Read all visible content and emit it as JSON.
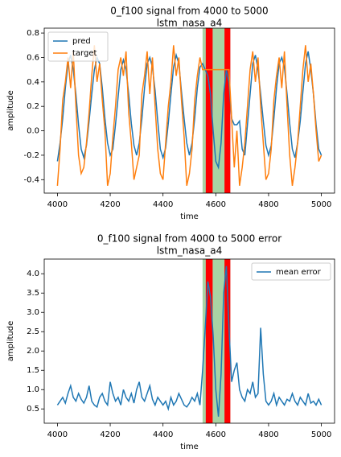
{
  "chart_data": [
    {
      "type": "line",
      "title": "0_f100 signal from 4000 to 5000",
      "subtitle": "lstm_nasa_a4",
      "xlabel": "time",
      "ylabel": "amplitude",
      "xlim": [
        3950,
        5050
      ],
      "xticks": [
        4000,
        4200,
        4400,
        4600,
        4800,
        5000
      ],
      "ylim": [
        -0.51,
        0.84
      ],
      "yticks": [
        -0.4,
        -0.2,
        {
          "value": 0,
          "label": "0.0"
        },
        0.2,
        0.4,
        0.6,
        0.8
      ],
      "grid": false,
      "legend": "upper left",
      "spans": [
        {
          "start": 4550,
          "end": 4655,
          "color": "#a9d3a4"
        },
        {
          "start": 4562,
          "end": 4588,
          "color": "#ff0000"
        },
        {
          "start": 4633,
          "end": 4655,
          "color": "#ff0000"
        }
      ],
      "x": [
        4000,
        4010,
        4020,
        4030,
        4040,
        4050,
        4060,
        4070,
        4080,
        4090,
        4100,
        4110,
        4120,
        4130,
        4140,
        4150,
        4160,
        4170,
        4180,
        4190,
        4200,
        4210,
        4220,
        4230,
        4240,
        4250,
        4260,
        4270,
        4280,
        4290,
        4300,
        4310,
        4320,
        4330,
        4340,
        4350,
        4360,
        4370,
        4380,
        4390,
        4400,
        4410,
        4420,
        4430,
        4440,
        4450,
        4460,
        4470,
        4480,
        4490,
        4500,
        4510,
        4520,
        4530,
        4540,
        4550,
        4560,
        4570,
        4580,
        4590,
        4600,
        4610,
        4620,
        4630,
        4640,
        4650,
        4660,
        4670,
        4680,
        4690,
        4700,
        4710,
        4720,
        4730,
        4740,
        4750,
        4760,
        4770,
        4780,
        4790,
        4800,
        4810,
        4820,
        4830,
        4840,
        4850,
        4860,
        4870,
        4880,
        4890,
        4900,
        4910,
        4920,
        4930,
        4940,
        4950,
        4960,
        4970,
        4980,
        4990,
        5000
      ],
      "series": [
        {
          "name": "pred",
          "color": "#1f77b4",
          "values": [
            -0.25,
            -0.1,
            0.1,
            0.35,
            0.55,
            0.62,
            0.5,
            0.3,
            0.05,
            -0.15,
            -0.22,
            -0.12,
            0.08,
            0.3,
            0.5,
            0.6,
            0.55,
            0.35,
            0.1,
            -0.1,
            -0.2,
            -0.15,
            0.05,
            0.28,
            0.5,
            0.58,
            0.5,
            0.3,
            0.06,
            -0.12,
            -0.2,
            -0.1,
            0.1,
            0.35,
            0.55,
            0.6,
            0.52,
            0.33,
            0.08,
            -0.15,
            -0.22,
            -0.14,
            0.06,
            0.3,
            0.52,
            0.62,
            0.55,
            0.32,
            0.1,
            -0.1,
            -0.2,
            -0.1,
            0.1,
            0.35,
            0.52,
            0.55,
            0.5,
            0.45,
            0.3,
            0.0,
            -0.25,
            -0.3,
            -0.1,
            0.3,
            0.5,
            0.4,
            0.1,
            0.05,
            0.05,
            0.08,
            -0.15,
            -0.2,
            0.05,
            0.3,
            0.55,
            0.62,
            0.5,
            0.3,
            0.08,
            -0.12,
            -0.2,
            -0.12,
            0.1,
            0.35,
            0.55,
            0.6,
            0.52,
            0.3,
            0.06,
            -0.15,
            -0.22,
            -0.1,
            0.08,
            0.32,
            0.55,
            0.65,
            0.5,
            0.3,
            0.05,
            -0.15,
            -0.2
          ]
        },
        {
          "name": "target",
          "color": "#ff7f0e",
          "values": [
            -0.45,
            -0.15,
            0.25,
            0.4,
            0.6,
            0.35,
            0.65,
            0.2,
            -0.2,
            -0.35,
            -0.3,
            -0.1,
            0.15,
            0.45,
            0.7,
            0.4,
            0.55,
            0.25,
            0.0,
            -0.45,
            -0.35,
            -0.05,
            0.2,
            0.5,
            0.6,
            0.45,
            0.65,
            0.15,
            -0.1,
            -0.4,
            -0.3,
            -0.2,
            0.3,
            0.45,
            0.65,
            0.3,
            0.6,
            0.2,
            -0.15,
            -0.35,
            -0.4,
            -0.1,
            0.2,
            0.4,
            0.7,
            0.45,
            0.6,
            0.25,
            -0.05,
            -0.45,
            -0.35,
            -0.15,
            0.25,
            0.45,
            0.6,
            0.5,
            0.5,
            0.5,
            0.5,
            0.5,
            0.5,
            0.5,
            0.5,
            0.5,
            0.5,
            0.5,
            0.1,
            -0.3,
            0.0,
            -0.45,
            -0.3,
            -0.1,
            0.2,
            0.5,
            0.65,
            0.4,
            0.6,
            0.2,
            -0.1,
            -0.4,
            -0.35,
            -0.15,
            0.25,
            0.45,
            0.6,
            0.35,
            0.65,
            0.2,
            -0.2,
            -0.45,
            -0.3,
            -0.1,
            0.2,
            0.5,
            0.7,
            0.4,
            0.55,
            0.3,
            0.0,
            -0.25,
            -0.2
          ]
        }
      ]
    },
    {
      "type": "line",
      "title": "0_f100 signal from 4000 to 5000  error",
      "subtitle": "lstm_nasa_a4",
      "xlabel": "time",
      "ylabel": "amplitude",
      "xlim": [
        3950,
        5050
      ],
      "xticks": [
        4000,
        4200,
        4400,
        4600,
        4800,
        5000
      ],
      "ylim": [
        0.13,
        4.38
      ],
      "yticks": [
        0.5,
        {
          "value": 1,
          "label": "1.0"
        },
        1.5,
        {
          "value": 2,
          "label": "2.0"
        },
        2.5,
        {
          "value": 3,
          "label": "3.0"
        },
        3.5,
        {
          "value": 4,
          "label": "4.0"
        }
      ],
      "grid": false,
      "legend": "upper right",
      "spans": [
        {
          "start": 4550,
          "end": 4655,
          "color": "#a9d3a4"
        },
        {
          "start": 4562,
          "end": 4588,
          "color": "#ff0000"
        },
        {
          "start": 4633,
          "end": 4655,
          "color": "#ff0000"
        }
      ],
      "x": [
        4000,
        4010,
        4020,
        4030,
        4040,
        4050,
        4060,
        4070,
        4080,
        4090,
        4100,
        4110,
        4120,
        4130,
        4140,
        4150,
        4160,
        4170,
        4180,
        4190,
        4200,
        4210,
        4220,
        4230,
        4240,
        4250,
        4260,
        4270,
        4280,
        4290,
        4300,
        4310,
        4320,
        4330,
        4340,
        4350,
        4360,
        4370,
        4380,
        4390,
        4400,
        4410,
        4420,
        4430,
        4440,
        4450,
        4460,
        4470,
        4480,
        4490,
        4500,
        4510,
        4520,
        4530,
        4540,
        4550,
        4560,
        4570,
        4580,
        4590,
        4600,
        4610,
        4620,
        4630,
        4640,
        4650,
        4660,
        4670,
        4680,
        4690,
        4700,
        4710,
        4720,
        4730,
        4740,
        4750,
        4760,
        4770,
        4780,
        4790,
        4800,
        4810,
        4820,
        4830,
        4840,
        4850,
        4860,
        4870,
        4880,
        4890,
        4900,
        4910,
        4920,
        4930,
        4940,
        4950,
        4960,
        4970,
        4980,
        4990,
        5000
      ],
      "series": [
        {
          "name": "mean error",
          "color": "#1f77b4",
          "values": [
            0.6,
            0.7,
            0.8,
            0.65,
            0.9,
            1.1,
            0.8,
            0.7,
            0.9,
            0.75,
            0.65,
            0.8,
            1.1,
            0.7,
            0.6,
            0.55,
            0.8,
            0.9,
            0.7,
            0.6,
            1.2,
            0.9,
            0.7,
            0.8,
            0.6,
            1.0,
            0.8,
            0.7,
            0.9,
            0.65,
            1.0,
            1.2,
            0.8,
            0.7,
            0.9,
            1.1,
            0.75,
            0.6,
            0.8,
            0.7,
            0.6,
            0.7,
            0.5,
            0.8,
            0.6,
            0.7,
            0.9,
            0.75,
            0.6,
            0.55,
            0.65,
            0.8,
            0.7,
            0.9,
            0.6,
            1.5,
            2.6,
            3.8,
            3.4,
            2.4,
            1.0,
            0.3,
            1.4,
            3.5,
            4.2,
            2.6,
            1.2,
            1.5,
            1.7,
            1.0,
            0.8,
            0.7,
            1.0,
            0.9,
            1.2,
            0.8,
            0.9,
            2.6,
            1.4,
            0.7,
            0.6,
            0.7,
            0.9,
            0.6,
            0.8,
            0.7,
            0.6,
            0.75,
            0.7,
            0.9,
            0.7,
            0.6,
            0.8,
            0.7,
            0.6,
            0.9,
            0.65,
            0.7,
            0.6,
            0.75,
            0.6
          ]
        }
      ]
    }
  ]
}
